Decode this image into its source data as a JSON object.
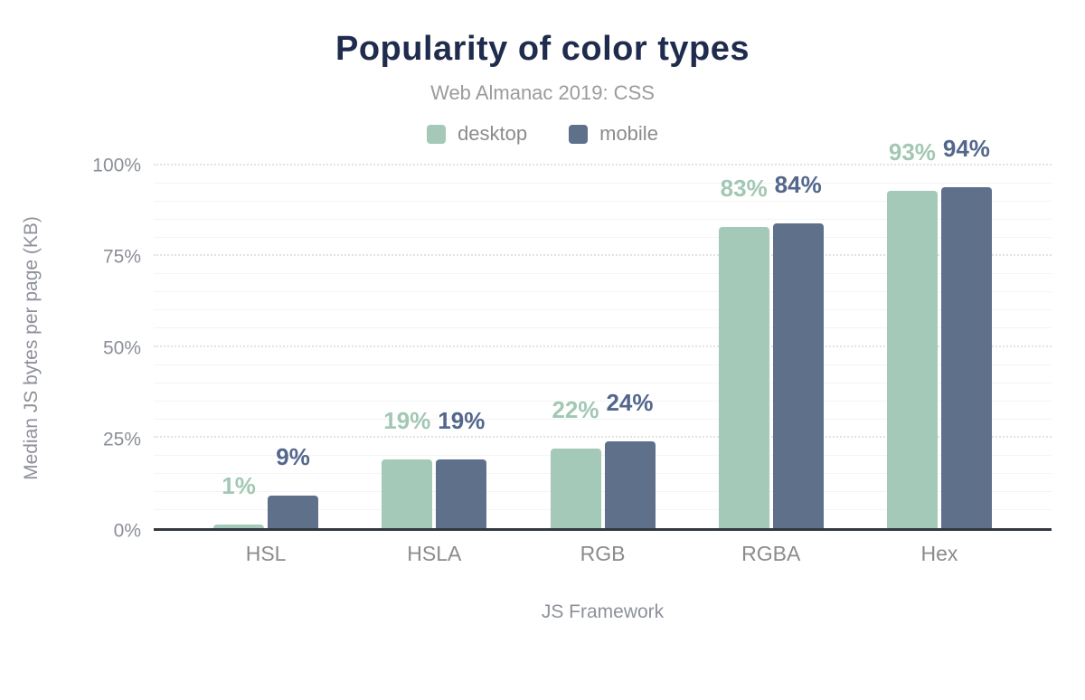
{
  "header": {
    "title": "Popularity of color types",
    "subtitle": "Web Almanac 2019: CSS"
  },
  "chart_data": {
    "type": "bar",
    "title": "Popularity of color types",
    "subtitle": "Web Almanac 2019: CSS",
    "categories": [
      "HSL",
      "HSLA",
      "RGB",
      "RGBA",
      "Hex"
    ],
    "series": [
      {
        "name": "desktop",
        "color": "#a4c9b8",
        "label_color": "#a2c8b4",
        "values": [
          1,
          19,
          22,
          83,
          93
        ],
        "labels": [
          "1%",
          "19%",
          "22%",
          "83%",
          "93%"
        ]
      },
      {
        "name": "mobile",
        "color": "#5e708a",
        "label_color": "#53678d",
        "values": [
          9,
          19,
          24,
          84,
          94
        ],
        "labels": [
          "9%",
          "19%",
          "24%",
          "84%",
          "94%"
        ]
      }
    ],
    "xlabel": "JS Framework",
    "ylabel": "Median JS bytes per page (KB)",
    "ylim": [
      0,
      100
    ],
    "ytick_values": [
      0,
      25,
      50,
      75,
      100
    ],
    "ytick_labels": [
      "0%",
      "25%",
      "50%",
      "75%",
      "100%"
    ],
    "grid": {
      "major_step": 25,
      "minor_step": 5,
      "major_style": "dotted",
      "minor_style": "solid"
    },
    "legend_position": "top",
    "colors": {
      "title": "#1f2c4d",
      "subtitle": "#9b9b9b",
      "axis_label": "#8d9199",
      "tick_label": "#8b8f98",
      "axis_line": "#333840",
      "background": "#ffffff",
      "gridline_major": "#e3e3e3",
      "gridline_minor": "#f4f4f4"
    }
  }
}
